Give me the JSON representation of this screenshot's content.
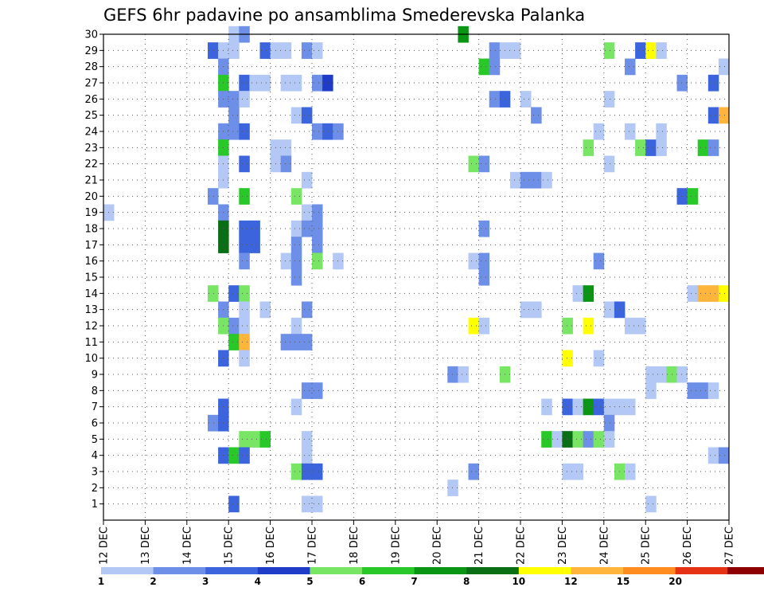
{
  "chart_data": {
    "type": "heatmap",
    "title": "GEFS 6hr padavine po ansamblima Smederevska Palanka",
    "xlabel": "",
    "ylabel": "",
    "x_tick_labels": [
      "12 DEC",
      "13 DEC",
      "14 DEC",
      "15 DEC",
      "16 DEC",
      "17 DEC",
      "18 DEC",
      "19 DEC",
      "20 DEC",
      "21 DEC",
      "22 DEC",
      "23 DEC",
      "24 DEC",
      "25 DEC",
      "26 DEC",
      "27 DEC"
    ],
    "x_range_days": [
      12,
      27
    ],
    "y_ticks": [
      1,
      2,
      3,
      4,
      5,
      6,
      7,
      8,
      9,
      10,
      11,
      12,
      13,
      14,
      15,
      16,
      17,
      18,
      19,
      20,
      21,
      22,
      23,
      24,
      25,
      26,
      27,
      28,
      29,
      30
    ],
    "y_range": [
      0,
      30
    ],
    "grid": true,
    "colorbar": {
      "levels": [
        "1",
        "2",
        "3",
        "4",
        "5",
        "6",
        "7",
        "8",
        "10",
        "12",
        "15",
        "20"
      ],
      "colors": [
        "#b4c8f5",
        "#6e8fe8",
        "#3c64dc",
        "#1e3cc8",
        "#78e664",
        "#28c828",
        "#0a9614",
        "#0a6e14",
        "#ffff00",
        "#ffb43c",
        "#ff8c1e",
        "#e63214",
        "#8c0000"
      ]
    },
    "cells": [
      {
        "day": 15.0,
        "m": 30,
        "v": 1
      },
      {
        "day": 15.25,
        "m": 30,
        "v": 2
      },
      {
        "day": 20.5,
        "m": 30,
        "v": 7
      },
      {
        "day": 14.5,
        "m": 29,
        "v": 3
      },
      {
        "day": 14.75,
        "m": 29,
        "v": 1
      },
      {
        "day": 15.0,
        "m": 29,
        "v": 1
      },
      {
        "day": 15.75,
        "m": 29,
        "v": 3
      },
      {
        "day": 16.0,
        "m": 29,
        "v": 1
      },
      {
        "day": 16.25,
        "m": 29,
        "v": 1
      },
      {
        "day": 16.75,
        "m": 29,
        "v": 2
      },
      {
        "day": 17.0,
        "m": 29,
        "v": 1
      },
      {
        "day": 21.25,
        "m": 29,
        "v": 2
      },
      {
        "day": 21.5,
        "m": 29,
        "v": 1
      },
      {
        "day": 21.75,
        "m": 29,
        "v": 1
      },
      {
        "day": 24.0,
        "m": 29,
        "v": 5
      },
      {
        "day": 24.75,
        "m": 29,
        "v": 3
      },
      {
        "day": 25.0,
        "m": 29,
        "v": 10
      },
      {
        "day": 25.25,
        "m": 29,
        "v": 1
      },
      {
        "day": 14.75,
        "m": 28,
        "v": 2
      },
      {
        "day": 21.0,
        "m": 28,
        "v": 6
      },
      {
        "day": 21.25,
        "m": 28,
        "v": 2
      },
      {
        "day": 24.5,
        "m": 28,
        "v": 2
      },
      {
        "day": 26.75,
        "m": 28,
        "v": 1
      },
      {
        "day": 14.75,
        "m": 27,
        "v": 6
      },
      {
        "day": 15.25,
        "m": 27,
        "v": 3
      },
      {
        "day": 15.5,
        "m": 27,
        "v": 1
      },
      {
        "day": 15.75,
        "m": 27,
        "v": 1
      },
      {
        "day": 16.25,
        "m": 27,
        "v": 1
      },
      {
        "day": 16.5,
        "m": 27,
        "v": 1
      },
      {
        "day": 17.0,
        "m": 27,
        "v": 2
      },
      {
        "day": 17.25,
        "m": 27,
        "v": 4
      },
      {
        "day": 25.75,
        "m": 27,
        "v": 2
      },
      {
        "day": 26.5,
        "m": 27,
        "v": 3
      },
      {
        "day": 14.75,
        "m": 26,
        "v": 2
      },
      {
        "day": 15.0,
        "m": 26,
        "v": 2
      },
      {
        "day": 15.25,
        "m": 26,
        "v": 1
      },
      {
        "day": 21.25,
        "m": 26,
        "v": 2
      },
      {
        "day": 21.5,
        "m": 26,
        "v": 3
      },
      {
        "day": 22.0,
        "m": 26,
        "v": 1
      },
      {
        "day": 24.0,
        "m": 26,
        "v": 1
      },
      {
        "day": 15.0,
        "m": 25,
        "v": 2
      },
      {
        "day": 16.5,
        "m": 25,
        "v": 1
      },
      {
        "day": 16.75,
        "m": 25,
        "v": 3
      },
      {
        "day": 22.25,
        "m": 25,
        "v": 2
      },
      {
        "day": 26.5,
        "m": 25,
        "v": 3
      },
      {
        "day": 26.75,
        "m": 25,
        "v": 13
      },
      {
        "day": 14.75,
        "m": 24,
        "v": 2
      },
      {
        "day": 15.0,
        "m": 24,
        "v": 2
      },
      {
        "day": 15.25,
        "m": 24,
        "v": 3
      },
      {
        "day": 17.0,
        "m": 24,
        "v": 2
      },
      {
        "day": 17.25,
        "m": 24,
        "v": 3
      },
      {
        "day": 17.5,
        "m": 24,
        "v": 2
      },
      {
        "day": 23.75,
        "m": 24,
        "v": 1
      },
      {
        "day": 24.5,
        "m": 24,
        "v": 1
      },
      {
        "day": 25.25,
        "m": 24,
        "v": 1
      },
      {
        "day": 14.75,
        "m": 23,
        "v": 6
      },
      {
        "day": 16.0,
        "m": 23,
        "v": 1
      },
      {
        "day": 16.25,
        "m": 23,
        "v": 1
      },
      {
        "day": 23.5,
        "m": 23,
        "v": 5
      },
      {
        "day": 24.75,
        "m": 23,
        "v": 5
      },
      {
        "day": 25.0,
        "m": 23,
        "v": 3
      },
      {
        "day": 25.25,
        "m": 23,
        "v": 1
      },
      {
        "day": 26.25,
        "m": 23,
        "v": 6
      },
      {
        "day": 26.5,
        "m": 23,
        "v": 2
      },
      {
        "day": 14.75,
        "m": 22,
        "v": 1
      },
      {
        "day": 15.25,
        "m": 22,
        "v": 3
      },
      {
        "day": 16.0,
        "m": 22,
        "v": 1
      },
      {
        "day": 16.25,
        "m": 22,
        "v": 2
      },
      {
        "day": 20.75,
        "m": 22,
        "v": 5
      },
      {
        "day": 21.0,
        "m": 22,
        "v": 2
      },
      {
        "day": 24.0,
        "m": 22,
        "v": 1
      },
      {
        "day": 14.75,
        "m": 21,
        "v": 1
      },
      {
        "day": 16.75,
        "m": 21,
        "v": 1
      },
      {
        "day": 21.75,
        "m": 21,
        "v": 1
      },
      {
        "day": 22.0,
        "m": 21,
        "v": 2
      },
      {
        "day": 22.25,
        "m": 21,
        "v": 2
      },
      {
        "day": 22.5,
        "m": 21,
        "v": 1
      },
      {
        "day": 14.5,
        "m": 20,
        "v": 2
      },
      {
        "day": 15.25,
        "m": 20,
        "v": 6
      },
      {
        "day": 16.5,
        "m": 20,
        "v": 5
      },
      {
        "day": 25.75,
        "m": 20,
        "v": 3
      },
      {
        "day": 26.0,
        "m": 20,
        "v": 6
      },
      {
        "day": 12.0,
        "m": 19,
        "v": 1
      },
      {
        "day": 14.75,
        "m": 19,
        "v": 2
      },
      {
        "day": 16.75,
        "m": 19,
        "v": 1
      },
      {
        "day": 17.0,
        "m": 19,
        "v": 2
      },
      {
        "day": 14.75,
        "m": 18,
        "v": 9
      },
      {
        "day": 15.25,
        "m": 18,
        "v": 3
      },
      {
        "day": 15.5,
        "m": 18,
        "v": 3
      },
      {
        "day": 16.5,
        "m": 18,
        "v": 1
      },
      {
        "day": 16.75,
        "m": 18,
        "v": 2
      },
      {
        "day": 17.0,
        "m": 18,
        "v": 2
      },
      {
        "day": 21.0,
        "m": 18,
        "v": 2
      },
      {
        "day": 14.75,
        "m": 17,
        "v": 9
      },
      {
        "day": 15.25,
        "m": 17,
        "v": 3
      },
      {
        "day": 15.5,
        "m": 17,
        "v": 3
      },
      {
        "day": 16.5,
        "m": 17,
        "v": 2
      },
      {
        "day": 17.0,
        "m": 17,
        "v": 2
      },
      {
        "day": 15.25,
        "m": 16,
        "v": 2
      },
      {
        "day": 16.25,
        "m": 16,
        "v": 1
      },
      {
        "day": 16.5,
        "m": 16,
        "v": 2
      },
      {
        "day": 17.0,
        "m": 16,
        "v": 5
      },
      {
        "day": 17.5,
        "m": 16,
        "v": 1
      },
      {
        "day": 20.75,
        "m": 16,
        "v": 1
      },
      {
        "day": 21.0,
        "m": 16,
        "v": 2
      },
      {
        "day": 23.75,
        "m": 16,
        "v": 2
      },
      {
        "day": 16.5,
        "m": 15,
        "v": 2
      },
      {
        "day": 21.0,
        "m": 15,
        "v": 2
      },
      {
        "day": 14.5,
        "m": 14,
        "v": 5
      },
      {
        "day": 15.0,
        "m": 14,
        "v": 3
      },
      {
        "day": 15.25,
        "m": 14,
        "v": 5
      },
      {
        "day": 23.25,
        "m": 14,
        "v": 1
      },
      {
        "day": 23.5,
        "m": 14,
        "v": 7
      },
      {
        "day": 26.0,
        "m": 14,
        "v": 1
      },
      {
        "day": 26.25,
        "m": 14,
        "v": 13
      },
      {
        "day": 26.5,
        "m": 14,
        "v": 13
      },
      {
        "day": 26.75,
        "m": 14,
        "v": 10
      },
      {
        "day": 14.75,
        "m": 13,
        "v": 2
      },
      {
        "day": 15.25,
        "m": 13,
        "v": 1
      },
      {
        "day": 15.75,
        "m": 13,
        "v": 1
      },
      {
        "day": 16.75,
        "m": 13,
        "v": 2
      },
      {
        "day": 22.0,
        "m": 13,
        "v": 1
      },
      {
        "day": 22.25,
        "m": 13,
        "v": 1
      },
      {
        "day": 24.0,
        "m": 13,
        "v": 1
      },
      {
        "day": 24.25,
        "m": 13,
        "v": 3
      },
      {
        "day": 14.75,
        "m": 12,
        "v": 5
      },
      {
        "day": 15.0,
        "m": 12,
        "v": 2
      },
      {
        "day": 15.25,
        "m": 12,
        "v": 1
      },
      {
        "day": 16.5,
        "m": 12,
        "v": 1
      },
      {
        "day": 20.75,
        "m": 12,
        "v": 10
      },
      {
        "day": 21.0,
        "m": 12,
        "v": 1
      },
      {
        "day": 23.0,
        "m": 12,
        "v": 5
      },
      {
        "day": 23.5,
        "m": 12,
        "v": 10
      },
      {
        "day": 24.5,
        "m": 12,
        "v": 1
      },
      {
        "day": 24.75,
        "m": 12,
        "v": 1
      },
      {
        "day": 15.0,
        "m": 11,
        "v": 6
      },
      {
        "day": 15.25,
        "m": 11,
        "v": 13
      },
      {
        "day": 16.25,
        "m": 11,
        "v": 2
      },
      {
        "day": 16.5,
        "m": 11,
        "v": 2
      },
      {
        "day": 16.75,
        "m": 11,
        "v": 2
      },
      {
        "day": 14.75,
        "m": 10,
        "v": 3
      },
      {
        "day": 15.25,
        "m": 10,
        "v": 1
      },
      {
        "day": 23.0,
        "m": 10,
        "v": 10
      },
      {
        "day": 23.75,
        "m": 10,
        "v": 1
      },
      {
        "day": 20.25,
        "m": 9,
        "v": 2
      },
      {
        "day": 20.5,
        "m": 9,
        "v": 1
      },
      {
        "day": 21.5,
        "m": 9,
        "v": 5
      },
      {
        "day": 25.0,
        "m": 9,
        "v": 1
      },
      {
        "day": 25.25,
        "m": 9,
        "v": 1
      },
      {
        "day": 25.5,
        "m": 9,
        "v": 5
      },
      {
        "day": 25.75,
        "m": 9,
        "v": 1
      },
      {
        "day": 16.75,
        "m": 8,
        "v": 2
      },
      {
        "day": 17.0,
        "m": 8,
        "v": 2
      },
      {
        "day": 25.0,
        "m": 8,
        "v": 1
      },
      {
        "day": 26.0,
        "m": 8,
        "v": 2
      },
      {
        "day": 26.25,
        "m": 8,
        "v": 2
      },
      {
        "day": 26.5,
        "m": 8,
        "v": 1
      },
      {
        "day": 14.75,
        "m": 7,
        "v": 3
      },
      {
        "day": 16.5,
        "m": 7,
        "v": 1
      },
      {
        "day": 22.5,
        "m": 7,
        "v": 1
      },
      {
        "day": 23.0,
        "m": 7,
        "v": 3
      },
      {
        "day": 23.25,
        "m": 7,
        "v": 1
      },
      {
        "day": 23.5,
        "m": 7,
        "v": 7
      },
      {
        "day": 23.75,
        "m": 7,
        "v": 3
      },
      {
        "day": 24.0,
        "m": 7,
        "v": 1
      },
      {
        "day": 24.25,
        "m": 7,
        "v": 1
      },
      {
        "day": 24.5,
        "m": 7,
        "v": 1
      },
      {
        "day": 14.5,
        "m": 6,
        "v": 2
      },
      {
        "day": 14.75,
        "m": 6,
        "v": 3
      },
      {
        "day": 24.0,
        "m": 6,
        "v": 2
      },
      {
        "day": 15.25,
        "m": 5,
        "v": 5
      },
      {
        "day": 15.5,
        "m": 5,
        "v": 5
      },
      {
        "day": 15.75,
        "m": 5,
        "v": 6
      },
      {
        "day": 16.75,
        "m": 5,
        "v": 1
      },
      {
        "day": 22.5,
        "m": 5,
        "v": 6
      },
      {
        "day": 22.75,
        "m": 5,
        "v": 1
      },
      {
        "day": 23.0,
        "m": 5,
        "v": 9
      },
      {
        "day": 23.25,
        "m": 5,
        "v": 5
      },
      {
        "day": 23.5,
        "m": 5,
        "v": 2
      },
      {
        "day": 23.75,
        "m": 5,
        "v": 5
      },
      {
        "day": 24.0,
        "m": 5,
        "v": 1
      },
      {
        "day": 14.75,
        "m": 4,
        "v": 3
      },
      {
        "day": 15.0,
        "m": 4,
        "v": 6
      },
      {
        "day": 15.25,
        "m": 4,
        "v": 3
      },
      {
        "day": 16.75,
        "m": 4,
        "v": 1
      },
      {
        "day": 26.5,
        "m": 4,
        "v": 1
      },
      {
        "day": 26.75,
        "m": 4,
        "v": 2
      },
      {
        "day": 16.5,
        "m": 3,
        "v": 5
      },
      {
        "day": 16.75,
        "m": 3,
        "v": 3
      },
      {
        "day": 17.0,
        "m": 3,
        "v": 3
      },
      {
        "day": 20.75,
        "m": 3,
        "v": 2
      },
      {
        "day": 23.0,
        "m": 3,
        "v": 1
      },
      {
        "day": 23.25,
        "m": 3,
        "v": 1
      },
      {
        "day": 24.25,
        "m": 3,
        "v": 5
      },
      {
        "day": 24.5,
        "m": 3,
        "v": 1
      },
      {
        "day": 20.25,
        "m": 2,
        "v": 1
      },
      {
        "day": 15.0,
        "m": 1,
        "v": 3
      },
      {
        "day": 16.75,
        "m": 1,
        "v": 1
      },
      {
        "day": 17.0,
        "m": 1,
        "v": 1
      },
      {
        "day": 25.0,
        "m": 1,
        "v": 1
      }
    ]
  }
}
